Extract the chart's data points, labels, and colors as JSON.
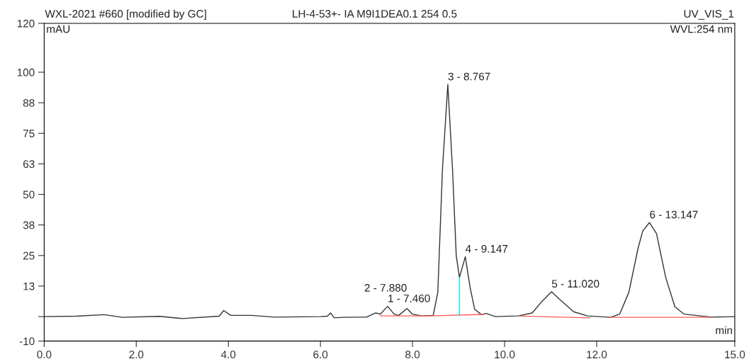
{
  "chart_data": {
    "type": "line",
    "title": "WXL-2021 #660 [modified by GC]",
    "subtitle": "LH-4-53+- IA M9I1DEA0.1 254 0.5",
    "xlabel": "min",
    "ylabel": "mAU",
    "xlim": [
      0,
      15
    ],
    "ylim": [
      -10,
      120
    ],
    "xticks": [
      {
        "value": 0,
        "label": "0.0"
      },
      {
        "value": 2,
        "label": "2.0"
      },
      {
        "value": 4,
        "label": "4.0"
      },
      {
        "value": 6,
        "label": "6.0"
      },
      {
        "value": 8,
        "label": "8.0"
      },
      {
        "value": 10,
        "label": "10.0"
      },
      {
        "value": 12,
        "label": "12.0"
      },
      {
        "value": 15,
        "label": "15.0"
      }
    ],
    "yticks": [
      -10,
      {
        "value": 0,
        "label": null
      },
      {
        "value": 12.5,
        "label": "13"
      },
      25,
      {
        "value": 37.5,
        "label": "38"
      },
      50,
      {
        "value": 62.5,
        "label": "63"
      },
      75,
      {
        "value": 87.5,
        "label": "88"
      },
      100,
      120
    ],
    "grid": false,
    "legend": false,
    "marker": "none",
    "line_style": "solid",
    "series": [
      {
        "color": "#333333",
        "x": [
          0,
          0.7,
          1.3,
          1.7,
          2.5,
          3.0,
          3.8,
          3.9,
          4.05,
          4.5,
          5.0,
          6.0,
          6.15,
          6.22,
          6.3,
          6.5,
          7.0,
          7.2,
          7.3,
          7.46,
          7.6,
          7.7,
          7.88,
          8.0,
          8.2,
          8.45,
          8.55,
          8.65,
          8.767,
          8.87,
          8.95,
          9.02,
          9.147,
          9.25,
          9.35,
          9.5,
          9.6,
          9.8,
          10.3,
          10.6,
          10.8,
          11.02,
          11.2,
          11.5,
          11.8,
          12.3,
          12.5,
          12.7,
          12.9,
          13.0,
          13.147,
          13.3,
          13.5,
          13.7,
          13.9,
          14.5,
          15.0
        ],
        "values": [
          0,
          0.2,
          0.8,
          -0.3,
          0.1,
          -0.8,
          0.2,
          2.5,
          0.5,
          0.5,
          -0.2,
          0,
          0.2,
          1.5,
          -0.5,
          -0.3,
          -0.2,
          1.5,
          1.0,
          4.2,
          1.0,
          0.5,
          3.3,
          1.0,
          0.3,
          0.5,
          10,
          60,
          95,
          60,
          25,
          16,
          24.5,
          12,
          3,
          0.8,
          1.3,
          0,
          0.3,
          1.5,
          6,
          10.2,
          7,
          2,
          0.3,
          -0.3,
          1,
          10,
          28,
          35,
          38.5,
          34,
          16,
          4,
          1,
          -0.2,
          0
        ]
      },
      {
        "color": "#ff5a5a",
        "x": [
          7.3,
          8.4,
          9.55,
          9.56,
          10.35,
          11.85,
          11.86,
          12.3,
          14.5
        ],
        "values": [
          0.3,
          0.3,
          0.9,
          null,
          0.2,
          -0.5,
          null,
          -0.3,
          -0.3
        ]
      },
      {
        "color": "#00e5ee",
        "x": [
          9.02,
          9.02
        ],
        "values": [
          0.5,
          16
        ]
      }
    ],
    "annotations": [
      "UV_VIS_1",
      "WVL:254 nm",
      {
        "text": "1 - 7.460",
        "x": 7.46,
        "y": 4.2
      },
      {
        "text": "2 - 7.880",
        "x": 7.88,
        "y": 3.3
      },
      {
        "text": "3 - 8.767",
        "x": 8.767,
        "y": 95
      },
      {
        "text": "4 - 9.147",
        "x": 9.147,
        "y": 24.5
      },
      {
        "text": "5 - 11.020",
        "x": 11.02,
        "y": 10.2
      },
      {
        "text": "6 - 13.147",
        "x": 13.147,
        "y": 38.5
      }
    ]
  }
}
